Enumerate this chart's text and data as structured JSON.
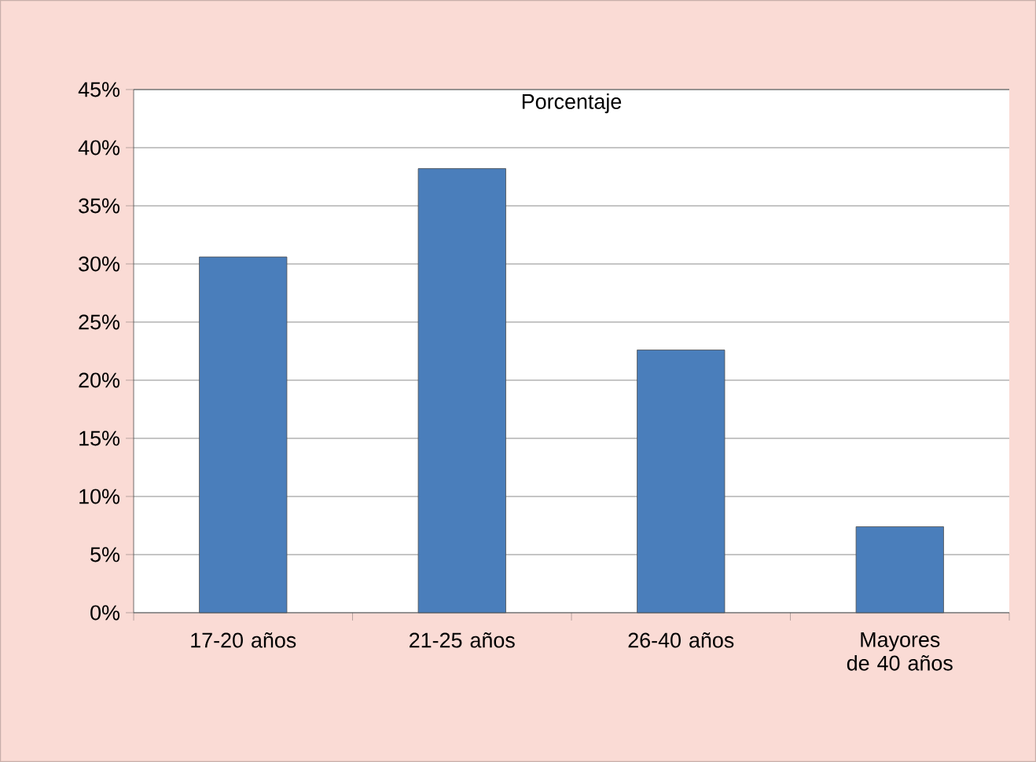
{
  "chart_data": {
    "type": "bar",
    "title": "Porcentaje",
    "categories": [
      "17-20 años",
      "21-25 años",
      "26-40 años",
      "Mayores de 40 años"
    ],
    "values": [
      30.6,
      38.2,
      22.6,
      7.4
    ],
    "color": "#4a7ebb",
    "ylim": [
      0,
      45
    ],
    "yticks": [
      {
        "value": 0,
        "label": "0%"
      },
      {
        "value": 5,
        "label": "5%"
      },
      {
        "value": 10,
        "label": "10%"
      },
      {
        "value": 15,
        "label": "15%"
      },
      {
        "value": 20,
        "label": "20%"
      },
      {
        "value": 25,
        "label": "25%"
      },
      {
        "value": 30,
        "label": "30%"
      },
      {
        "value": 35,
        "label": "35%"
      },
      {
        "value": 40,
        "label": "40%"
      },
      {
        "value": 45,
        "label": "45%"
      }
    ],
    "grid": "y"
  }
}
